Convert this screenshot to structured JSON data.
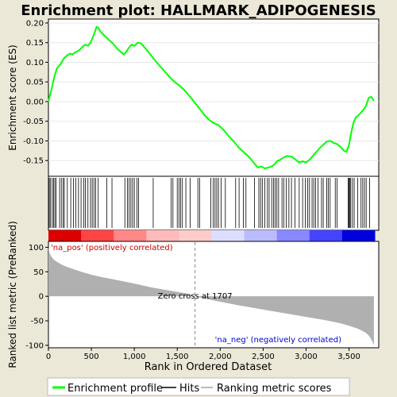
{
  "chart_data": {
    "type": "line",
    "title": "Enrichment plot: HALLMARK_ADIPOGENESIS",
    "top_panel": {
      "ylabel": "Enrichment score (ES)",
      "ylim": [
        -0.19,
        0.21
      ],
      "yticks": [
        0.2,
        0.15,
        0.1,
        0.05,
        0.0,
        -0.05,
        -0.1,
        -0.15
      ],
      "ytick_labels": [
        "0.20",
        "0.15",
        "0.10",
        "0.05",
        "0.00",
        "-0.05",
        "-0.10",
        "-0.15"
      ],
      "line_color": "#00ff00",
      "es_curve": {
        "x": [
          0,
          40,
          70,
          100,
          140,
          180,
          220,
          250,
          280,
          310,
          340,
          370,
          400,
          430,
          460,
          490,
          520,
          545,
          560,
          580,
          600,
          650,
          700,
          750,
          800,
          850,
          880,
          910,
          940,
          970,
          1000,
          1040,
          1080,
          1150,
          1230,
          1300,
          1380,
          1430,
          1480,
          1530,
          1580,
          1620,
          1660,
          1700,
          1760,
          1820,
          1880,
          1930,
          1980,
          2040,
          2100,
          2160,
          2220,
          2280,
          2340,
          2400,
          2440,
          2480,
          2520,
          2560,
          2600,
          2630,
          2660,
          2700,
          2740,
          2780,
          2830,
          2880,
          2920,
          2960,
          3000,
          3040,
          3080,
          3120,
          3160,
          3200,
          3240,
          3280,
          3320,
          3360,
          3400,
          3440,
          3470,
          3500,
          3520,
          3550,
          3580,
          3610,
          3640,
          3670,
          3700,
          3730,
          3760,
          3790
        ],
        "y": [
          0.0,
          0.035,
          0.065,
          0.085,
          0.095,
          0.11,
          0.118,
          0.122,
          0.12,
          0.125,
          0.128,
          0.133,
          0.14,
          0.145,
          0.142,
          0.15,
          0.165,
          0.18,
          0.19,
          0.188,
          0.18,
          0.168,
          0.158,
          0.148,
          0.135,
          0.125,
          0.12,
          0.128,
          0.138,
          0.145,
          0.142,
          0.15,
          0.148,
          0.13,
          0.108,
          0.09,
          0.07,
          0.058,
          0.048,
          0.04,
          0.03,
          0.02,
          0.01,
          -0.002,
          -0.018,
          -0.035,
          -0.048,
          -0.055,
          -0.06,
          -0.072,
          -0.088,
          -0.102,
          -0.118,
          -0.13,
          -0.142,
          -0.158,
          -0.168,
          -0.165,
          -0.17,
          -0.168,
          -0.165,
          -0.16,
          -0.152,
          -0.148,
          -0.142,
          -0.138,
          -0.14,
          -0.148,
          -0.155,
          -0.152,
          -0.155,
          -0.148,
          -0.138,
          -0.128,
          -0.118,
          -0.11,
          -0.102,
          -0.1,
          -0.105,
          -0.108,
          -0.115,
          -0.125,
          -0.128,
          -0.11,
          -0.085,
          -0.055,
          -0.04,
          -0.035,
          -0.028,
          -0.02,
          -0.01,
          0.01,
          0.012,
          0.002
        ]
      }
    },
    "hits_panel": {
      "positions": [
        10,
        25,
        45,
        60,
        75,
        90,
        130,
        150,
        170,
        185,
        220,
        260,
        290,
        320,
        350,
        380,
        410,
        430,
        460,
        490,
        510,
        530,
        550,
        580,
        680,
        740,
        890,
        920,
        940,
        960,
        980,
        1000,
        1030,
        1050,
        1220,
        1430,
        1450,
        1500,
        1520,
        1540,
        1560,
        1600,
        1650,
        1740,
        1760,
        1890,
        1920,
        1940,
        1960,
        1980,
        2010,
        2060,
        2180,
        2220,
        2270,
        2300,
        2400,
        2450,
        2470,
        2490,
        2520,
        2550,
        2570,
        2600,
        2620,
        2640,
        2660,
        2680,
        2720,
        2740,
        2770,
        2800,
        2830,
        2870,
        2920,
        2960,
        2990,
        3020,
        3040,
        3070,
        3090,
        3110,
        3140,
        3180,
        3200,
        3240,
        3260,
        3280,
        3340,
        3360,
        3490,
        3500,
        3510,
        3520,
        3540,
        3560,
        3600,
        3640,
        3660,
        3680,
        3700,
        3740
      ],
      "gradient": [
        "#dd0000",
        "#ff4444",
        "#ff8888",
        "#ffbbbb",
        "#ffcccc",
        "#ddddff",
        "#bbbbff",
        "#8888ff",
        "#4444ff",
        "#0000dd"
      ]
    },
    "bottom_panel": {
      "ylabel": "Ranked list metric (PreRanked)",
      "xlabel": "Rank in Ordered Dataset",
      "ylim": [
        -105,
        112
      ],
      "yticks": [
        100,
        50,
        0,
        -50,
        -100
      ],
      "ytick_labels": [
        "100",
        "50",
        "0",
        "-50",
        "-100"
      ],
      "xticks": [
        0,
        500,
        1000,
        1500,
        2000,
        2500,
        3000,
        3500
      ],
      "xtick_labels": [
        "0",
        "500",
        "1,000",
        "1,500",
        "2,000",
        "2,500",
        "3,000",
        "3,500"
      ],
      "xlim": [
        0,
        3800
      ],
      "metric_curve": {
        "x": [
          0,
          10,
          30,
          60,
          100,
          150,
          200,
          300,
          400,
          500,
          600,
          800,
          1000,
          1200,
          1400,
          1600,
          1707,
          1800,
          2000,
          2200,
          2400,
          2600,
          2800,
          3000,
          3200,
          3400,
          3500,
          3600,
          3650,
          3700,
          3730,
          3750,
          3770,
          3790
        ],
        "y": [
          100,
          90,
          82,
          75,
          70,
          65,
          61,
          55,
          49,
          44,
          40,
          33,
          26,
          18,
          12,
          6,
          0,
          -4,
          -11,
          -18,
          -24,
          -30,
          -36,
          -42,
          -48,
          -55,
          -60,
          -66,
          -70,
          -75,
          -80,
          -85,
          -92,
          -100
        ]
      },
      "zero_cross_label": "Zero cross at 1707",
      "zero_cross_rank": 1707,
      "pos_label": "'na_pos' (positively correlated)",
      "neg_label": "'na_neg' (negatively correlated)",
      "pos_color": "#cc0000",
      "neg_color": "#0000cc"
    },
    "legend": {
      "items": [
        "Enrichment profile",
        "Hits",
        "Ranking metric scores"
      ]
    }
  }
}
